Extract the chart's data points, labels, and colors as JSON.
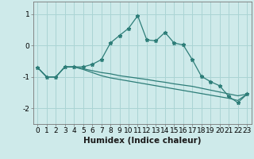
{
  "xlabel": "Humidex (Indice chaleur)",
  "background_color": "#ceeaea",
  "line_color": "#2d7d78",
  "grid_color": "#aad4d4",
  "x_values": [
    0,
    1,
    2,
    3,
    4,
    5,
    6,
    7,
    8,
    9,
    10,
    11,
    12,
    13,
    14,
    15,
    16,
    17,
    18,
    19,
    20,
    21,
    22,
    23
  ],
  "line1_y": [
    -0.7,
    -1.0,
    -1.0,
    -0.68,
    -0.68,
    -0.68,
    -0.6,
    -0.45,
    0.08,
    0.32,
    0.55,
    0.95,
    0.18,
    0.15,
    0.42,
    0.08,
    0.02,
    -0.45,
    -0.98,
    -1.15,
    -1.28,
    -1.62,
    -1.82,
    -1.55
  ],
  "line2_y": [
    -0.7,
    -1.0,
    -1.0,
    -0.68,
    -0.68,
    -0.74,
    -0.8,
    -0.86,
    -0.9,
    -0.96,
    -1.0,
    -1.04,
    -1.08,
    -1.13,
    -1.17,
    -1.22,
    -1.26,
    -1.3,
    -1.36,
    -1.42,
    -1.48,
    -1.54,
    -1.6,
    -1.55
  ],
  "line3_y": [
    -0.7,
    -1.0,
    -1.0,
    -0.68,
    -0.68,
    -0.76,
    -0.86,
    -0.96,
    -1.03,
    -1.08,
    -1.13,
    -1.18,
    -1.23,
    -1.28,
    -1.33,
    -1.38,
    -1.43,
    -1.48,
    -1.53,
    -1.58,
    -1.63,
    -1.68,
    -1.75,
    -1.55
  ],
  "ylim": [
    -2.5,
    1.4
  ],
  "yticks": [
    -2,
    -1,
    0,
    1
  ],
  "xlim": [
    -0.5,
    23.5
  ],
  "tick_fontsize": 6.5,
  "xlabel_fontsize": 7.5
}
